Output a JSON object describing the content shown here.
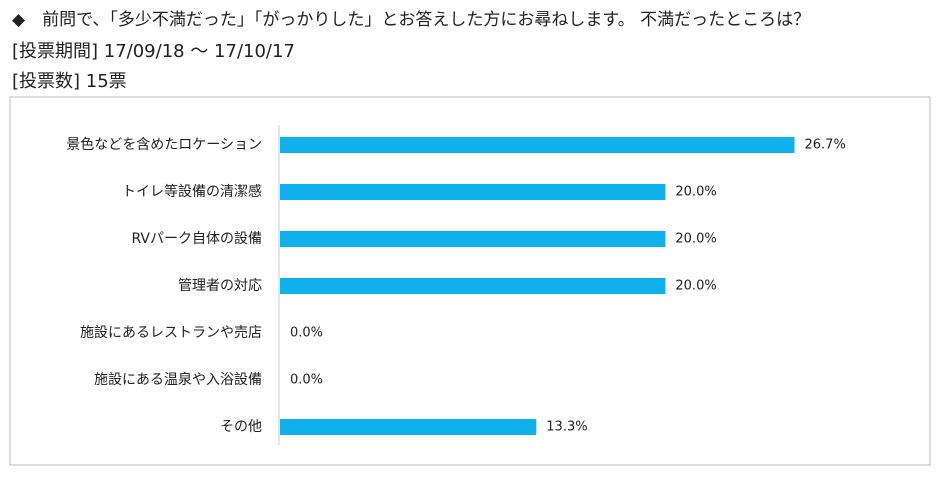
{
  "chart_data": {
    "type": "bar",
    "orientation": "horizontal",
    "title": "◆　前問で、「多少不満だった」「がっかりした」とお答えした方にお尋ねします。 不満だったところは？",
    "subtitle": [
      "[投票期間] 17/09/18 ～ 17/10/17",
      "[投票数] 15票"
    ],
    "categories": [
      "景色などを含めたロケーション",
      "トイレ等設備の清潔感",
      "RVパーク自体の設備",
      "管理者の対応",
      "施設にあるレストランや売店",
      "施設にある温泉や入浴設備",
      "その他"
    ],
    "values": [
      26.7,
      20.0,
      20.0,
      20.0,
      0.0,
      0.0,
      13.3
    ],
    "value_labels": [
      "26.7%",
      "20.0%",
      "20.0%",
      "20.0%",
      "0.0%",
      "0.0%",
      "13.3%"
    ],
    "color": "#0fb0ec"
  }
}
